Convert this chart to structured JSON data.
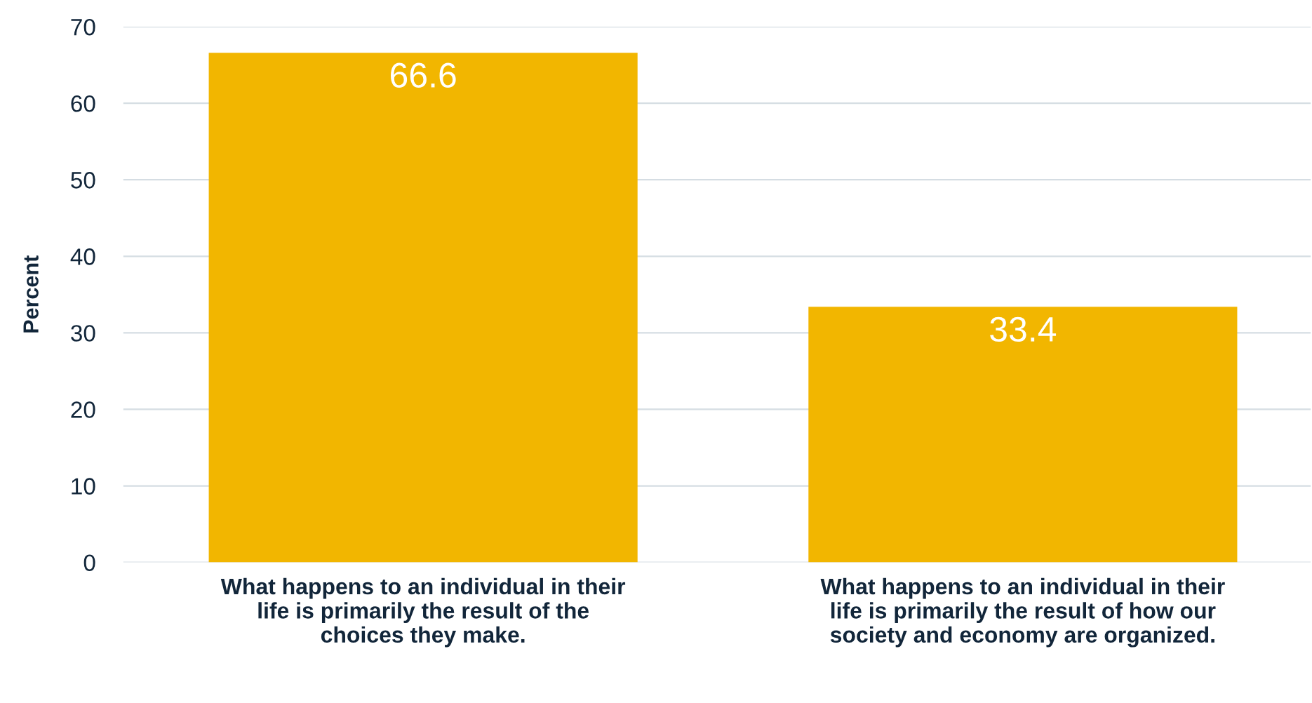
{
  "chart_data": {
    "type": "bar",
    "ylabel": "Percent",
    "categories": [
      "What happens to an individual in their\nlife is primarily the result of the\nchoices they make.",
      "What happens to an individual in their\nlife is primarily the result of how our\nsociety and economy are organized."
    ],
    "values": [
      66.6,
      33.4
    ],
    "color": "#f2b600",
    "ylim": [
      0,
      70
    ],
    "yticks": [
      0,
      10,
      20,
      30,
      40,
      50,
      60,
      70
    ],
    "grid": "y",
    "data_labels": true
  }
}
